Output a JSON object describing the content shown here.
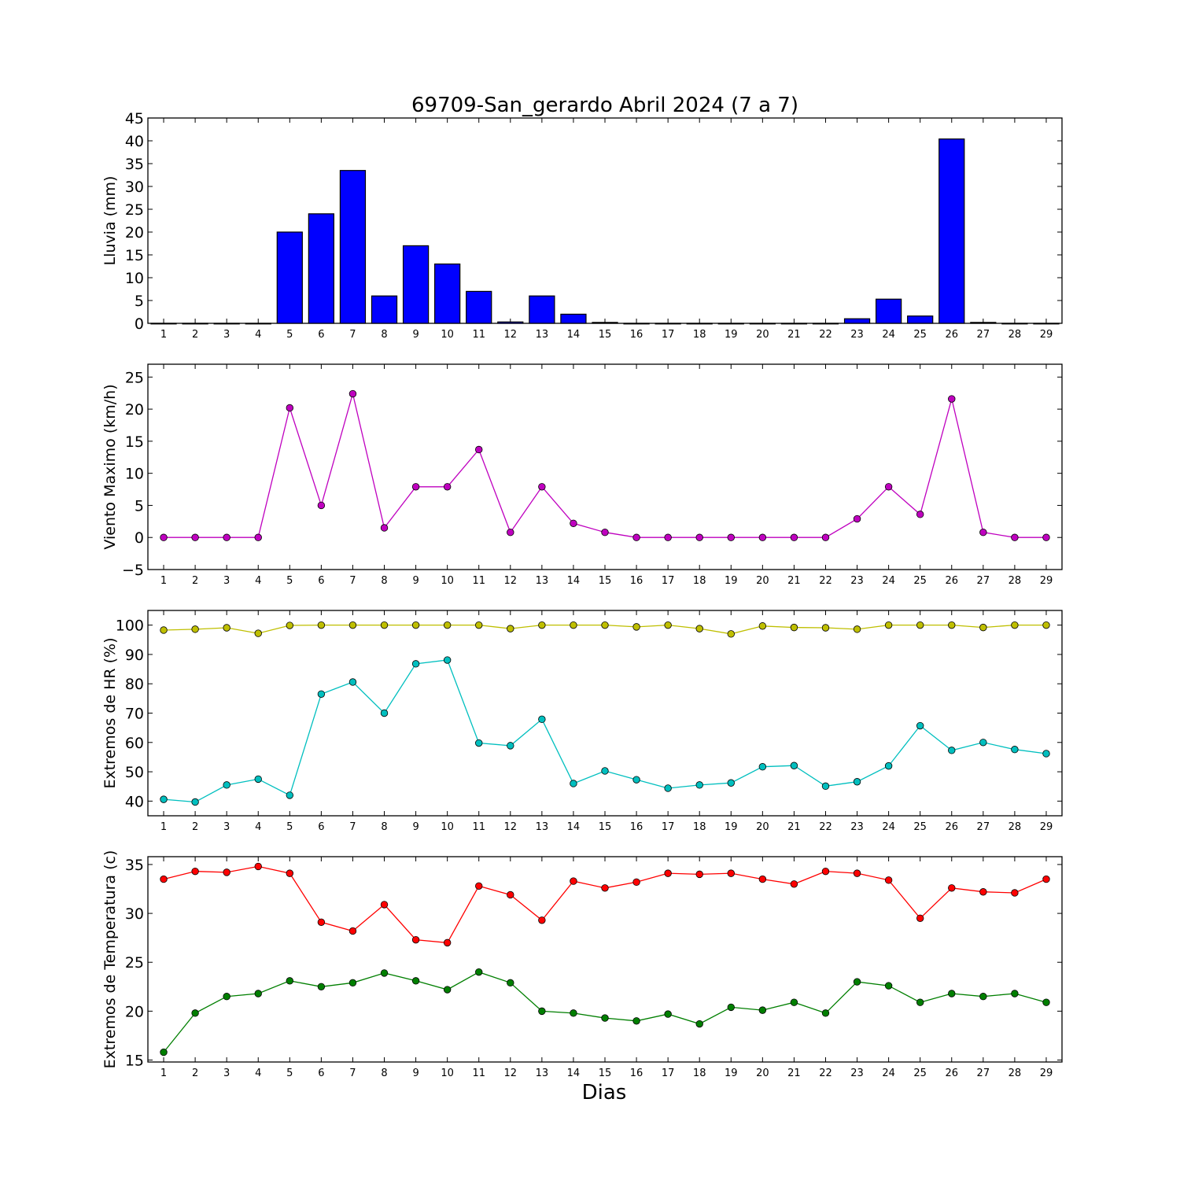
{
  "title": "69709-San_gerardo Abril 2024  (7 a 7)",
  "xlabel": "Dias",
  "chart_data": [
    {
      "type": "bar",
      "ylabel": "Lluvia (mm)",
      "ylim": [
        0,
        45
      ],
      "yticks": [
        0,
        5,
        10,
        15,
        20,
        25,
        30,
        35,
        40,
        45
      ],
      "x": [
        1,
        2,
        3,
        4,
        5,
        6,
        7,
        8,
        9,
        10,
        11,
        12,
        13,
        14,
        15,
        16,
        17,
        18,
        19,
        20,
        21,
        22,
        23,
        24,
        25,
        26,
        27,
        28,
        29
      ],
      "series": [
        {
          "color": "#0000ff",
          "values": [
            0,
            0,
            0,
            0,
            20,
            24,
            33.5,
            6,
            17,
            13,
            7,
            0.3,
            6,
            2,
            0.2,
            0,
            0,
            0,
            0,
            0,
            0,
            0,
            1,
            5.3,
            1.6,
            40.4,
            0.2,
            0,
            0
          ]
        }
      ]
    },
    {
      "type": "line",
      "ylabel": "Viento Maximo (km/h)",
      "ylim": [
        -5,
        27
      ],
      "yticks": [
        -5,
        0,
        5,
        10,
        15,
        20,
        25
      ],
      "ytick_labels": [
        "−5",
        "0",
        "5",
        "10",
        "15",
        "20",
        "25"
      ],
      "x": [
        1,
        2,
        3,
        4,
        5,
        6,
        7,
        8,
        9,
        10,
        11,
        12,
        13,
        14,
        15,
        16,
        17,
        18,
        19,
        20,
        21,
        22,
        23,
        24,
        25,
        26,
        27,
        28,
        29
      ],
      "series": [
        {
          "color": "#bf00bf",
          "values": [
            0,
            0,
            0,
            0,
            20.2,
            5,
            22.4,
            1.5,
            7.9,
            7.9,
            13.7,
            0.8,
            7.9,
            2.2,
            0.8,
            0,
            0,
            0,
            0,
            0,
            0,
            0,
            2.9,
            7.9,
            3.6,
            21.6,
            0.8,
            0,
            0
          ]
        }
      ]
    },
    {
      "type": "line",
      "ylabel": "Extremos de HR (%)",
      "ylim": [
        35,
        105
      ],
      "yticks": [
        40,
        50,
        60,
        70,
        80,
        90,
        100
      ],
      "x": [
        1,
        2,
        3,
        4,
        5,
        6,
        7,
        8,
        9,
        10,
        11,
        12,
        13,
        14,
        15,
        16,
        17,
        18,
        19,
        20,
        21,
        22,
        23,
        24,
        25,
        26,
        27,
        28,
        29
      ],
      "series": [
        {
          "color": "#bfbf00",
          "values": [
            98.3,
            98.6,
            99.1,
            97.2,
            99.9,
            100,
            100,
            100,
            100,
            100,
            100,
            98.8,
            100,
            100,
            100,
            99.4,
            100,
            98.8,
            97,
            99.7,
            99.2,
            99.1,
            98.6,
            100,
            100,
            100,
            99.2,
            100,
            100
          ]
        },
        {
          "color": "#00bfbf",
          "values": [
            40.6,
            39.7,
            45.5,
            47.5,
            42,
            76.5,
            80.6,
            70,
            86.8,
            88.1,
            59.8,
            58.9,
            67.9,
            46,
            50.3,
            47.3,
            44.4,
            45.5,
            46.2,
            51.7,
            52.1,
            45.1,
            46.6,
            52,
            65.7,
            57.3,
            60,
            57.6,
            56.2
          ]
        }
      ]
    },
    {
      "type": "line",
      "ylabel": "Extremos de Temperatura (c)",
      "ylim": [
        14.8,
        35.8
      ],
      "yticks": [
        15,
        20,
        25,
        30,
        35
      ],
      "x": [
        1,
        2,
        3,
        4,
        5,
        6,
        7,
        8,
        9,
        10,
        11,
        12,
        13,
        14,
        15,
        16,
        17,
        18,
        19,
        20,
        21,
        22,
        23,
        24,
        25,
        26,
        27,
        28,
        29
      ],
      "series": [
        {
          "color": "#ff0000",
          "values": [
            33.5,
            34.3,
            34.2,
            34.8,
            34.1,
            29.1,
            28.2,
            30.9,
            27.3,
            27,
            32.8,
            31.9,
            29.3,
            33.3,
            32.6,
            33.2,
            34.1,
            34,
            34.1,
            33.5,
            33,
            34.3,
            34.1,
            33.4,
            29.5,
            32.6,
            32.2,
            32.1,
            33.5
          ]
        },
        {
          "color": "#007f00",
          "values": [
            15.8,
            19.8,
            21.5,
            21.8,
            23.1,
            22.5,
            22.9,
            23.9,
            23.1,
            22.2,
            24,
            22.9,
            20,
            19.8,
            19.3,
            19,
            19.7,
            18.7,
            20.4,
            20.1,
            20.9,
            19.8,
            23,
            22.6,
            20.9,
            21.8,
            21.5,
            21.8,
            20.9
          ]
        }
      ]
    }
  ]
}
